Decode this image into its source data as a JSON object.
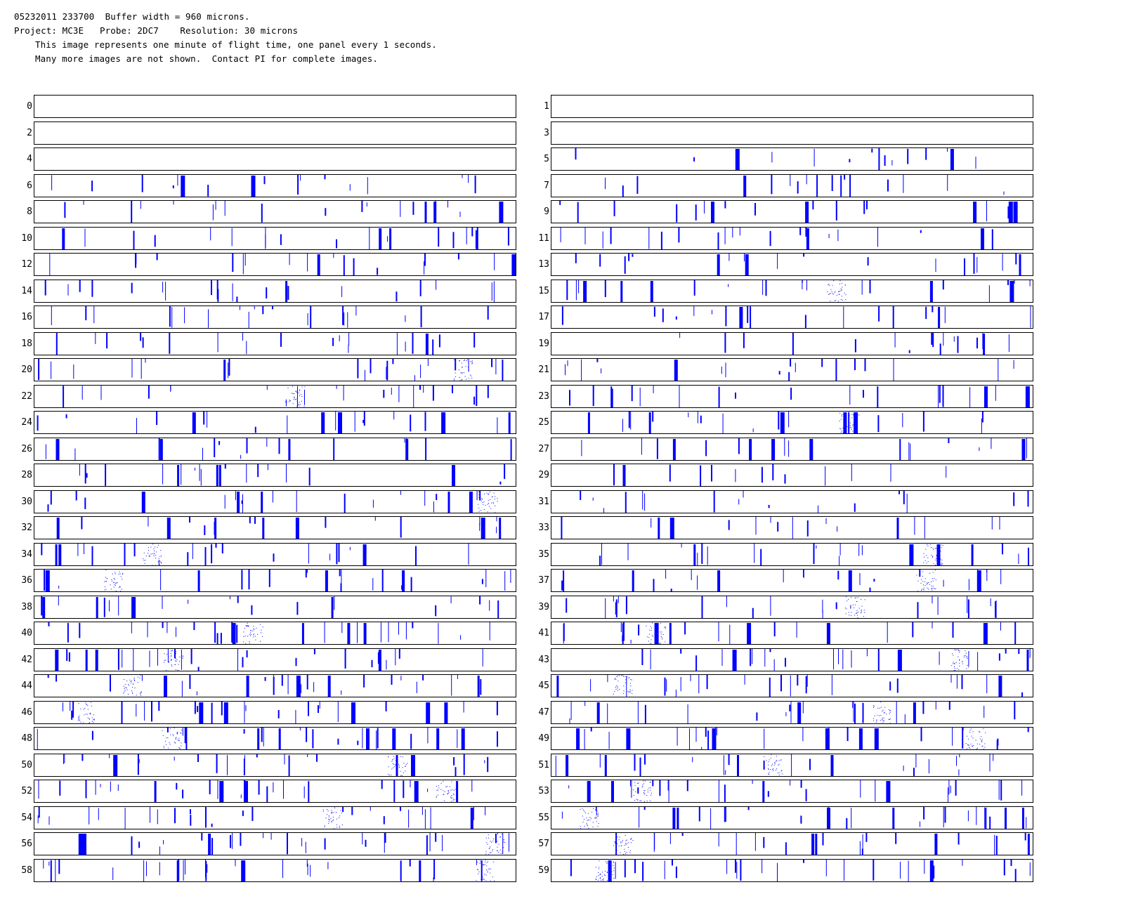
{
  "header": {
    "line1": "05232011 233700  Buffer width = 960 microns.",
    "line2": "Project: MC3E   Probe: 2DC7    Resolution: 30 microns",
    "line3": "This image represents one minute of flight time, one panel every 1 seconds.",
    "line4": "Many more images are not shown.  Contact PI for complete images."
  },
  "image_color": "#0000ff",
  "panels": [
    {
      "label": "0",
      "fill": 0
    },
    {
      "label": "1",
      "fill": 0
    },
    {
      "label": "2",
      "fill": 0
    },
    {
      "label": "3",
      "fill": 0
    },
    {
      "label": "4",
      "fill": 0
    },
    {
      "label": "5",
      "fill": 0.4
    },
    {
      "label": "6",
      "fill": 0.45
    },
    {
      "label": "7",
      "fill": 0.45
    },
    {
      "label": "8",
      "fill": 0.55
    },
    {
      "label": "9",
      "fill": 0.5
    },
    {
      "label": "10",
      "fill": 0.55
    },
    {
      "label": "11",
      "fill": 0.55
    },
    {
      "label": "12",
      "fill": 0.5
    },
    {
      "label": "13",
      "fill": 0.5
    },
    {
      "label": "14",
      "fill": 0.55
    },
    {
      "label": "15",
      "fill": 0.6
    },
    {
      "label": "16",
      "fill": 0.55
    },
    {
      "label": "17",
      "fill": 0.5
    },
    {
      "label": "18",
      "fill": 0.55
    },
    {
      "label": "19",
      "fill": 0.45
    },
    {
      "label": "20",
      "fill": 0.6
    },
    {
      "label": "21",
      "fill": 0.5
    },
    {
      "label": "22",
      "fill": 0.6
    },
    {
      "label": "23",
      "fill": 0.55
    },
    {
      "label": "24",
      "fill": 0.55
    },
    {
      "label": "25",
      "fill": 0.6
    },
    {
      "label": "26",
      "fill": 0.5
    },
    {
      "label": "27",
      "fill": 0.5
    },
    {
      "label": "28",
      "fill": 0.55
    },
    {
      "label": "29",
      "fill": 0.35
    },
    {
      "label": "30",
      "fill": 0.6
    },
    {
      "label": "31",
      "fill": 0.45
    },
    {
      "label": "32",
      "fill": 0.55
    },
    {
      "label": "33",
      "fill": 0.45
    },
    {
      "label": "34",
      "fill": 0.65
    },
    {
      "label": "35",
      "fill": 0.6
    },
    {
      "label": "36",
      "fill": 0.6
    },
    {
      "label": "37",
      "fill": 0.65
    },
    {
      "label": "38",
      "fill": 0.55
    },
    {
      "label": "39",
      "fill": 0.6
    },
    {
      "label": "40",
      "fill": 0.75
    },
    {
      "label": "41",
      "fill": 0.7
    },
    {
      "label": "42",
      "fill": 0.75
    },
    {
      "label": "43",
      "fill": 0.7
    },
    {
      "label": "44",
      "fill": 0.75
    },
    {
      "label": "45",
      "fill": 0.7
    },
    {
      "label": "46",
      "fill": 0.8
    },
    {
      "label": "47",
      "fill": 0.7
    },
    {
      "label": "48",
      "fill": 0.7
    },
    {
      "label": "49",
      "fill": 0.75
    },
    {
      "label": "50",
      "fill": 0.65
    },
    {
      "label": "51",
      "fill": 0.65
    },
    {
      "label": "52",
      "fill": 0.8
    },
    {
      "label": "53",
      "fill": 0.75
    },
    {
      "label": "54",
      "fill": 0.7
    },
    {
      "label": "55",
      "fill": 0.8
    },
    {
      "label": "56",
      "fill": 0.75
    },
    {
      "label": "57",
      "fill": 0.65
    },
    {
      "label": "58",
      "fill": 0.8
    },
    {
      "label": "59",
      "fill": 0.8
    }
  ]
}
